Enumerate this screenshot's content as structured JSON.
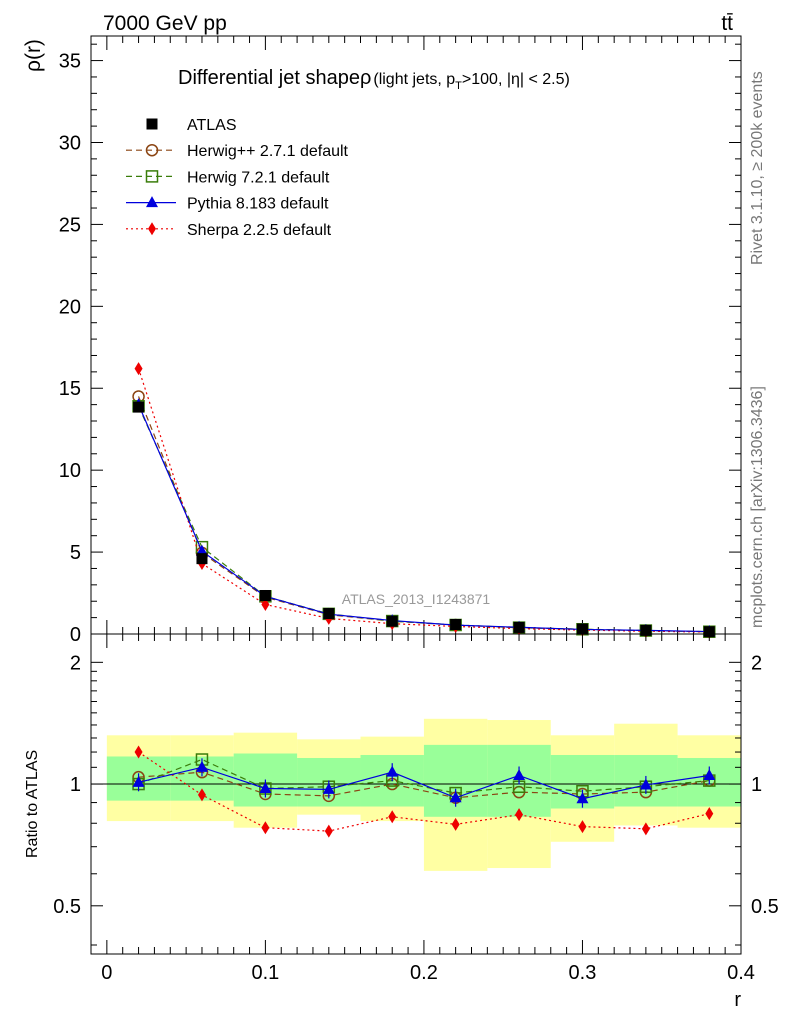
{
  "header": {
    "energy_label": "7000 GeV pp",
    "process_label": "tt̄",
    "rivet_label": "Rivet 3.1.10, ≥ 200k events",
    "mcplots_label": "mcplots.cern.ch [arXiv:1306.3436]",
    "analysis_label": "ATLAS_2013_I1243871"
  },
  "chart_data": [
    {
      "name": "main",
      "type": "line",
      "title": "Differential jet shape",
      "title_symbol": "ρ",
      "subtitle": "(light jets, p",
      "subtitle_sub": "T",
      "subtitle_rest": ">100, |η| < 2.5)",
      "ylabel": "ρ(r)",
      "xlabel": "r",
      "xlim": [
        -0.01,
        0.4
      ],
      "ylim": [
        0,
        36.5
      ],
      "yticks": [
        0,
        5,
        10,
        15,
        20,
        25,
        30,
        35
      ],
      "x": [
        0.02,
        0.06,
        0.1,
        0.14,
        0.18,
        0.22,
        0.26,
        0.3,
        0.34,
        0.38
      ],
      "series": [
        {
          "name": "ATLAS",
          "color": "#000000",
          "marker": "square-filled",
          "values": [
            13.85,
            4.6,
            2.35,
            1.25,
            0.78,
            0.58,
            0.4,
            0.3,
            0.22,
            0.14
          ]
        },
        {
          "name": "Herwig++ 2.7.1 default",
          "color": "#8b4513",
          "marker": "circle-open",
          "values": [
            14.5,
            4.95,
            2.25,
            1.18,
            0.78,
            0.55,
            0.38,
            0.29,
            0.21,
            0.14
          ]
        },
        {
          "name": "Herwig 7.2.1 default",
          "color": "#3a7d0a",
          "marker": "square-open",
          "values": [
            13.9,
            5.3,
            2.3,
            1.23,
            0.79,
            0.55,
            0.39,
            0.29,
            0.21,
            0.14
          ]
        },
        {
          "name": "Pythia 8.183 default",
          "color": "#0000dd",
          "marker": "triangle-filled",
          "values": [
            14.0,
            5.05,
            2.3,
            1.21,
            0.82,
            0.54,
            0.41,
            0.28,
            0.22,
            0.15
          ]
        },
        {
          "name": "Sherpa 2.2.5 default",
          "color": "#ee0000",
          "marker": "diamond-filled",
          "values": [
            16.2,
            4.3,
            1.8,
            0.95,
            0.63,
            0.46,
            0.33,
            0.24,
            0.17,
            0.12
          ]
        }
      ]
    },
    {
      "name": "ratio",
      "type": "line",
      "ylabel": "Ratio to ATLAS",
      "xlabel": "r",
      "xlim": [
        -0.01,
        0.4
      ],
      "ylim": [
        0.38,
        2.35
      ],
      "scale": "log",
      "yticks": [
        0.5,
        1,
        2
      ],
      "ytick_labels": [
        "0.5",
        "1",
        "2"
      ],
      "xticks": [
        0,
        0.1,
        0.2,
        0.3,
        0.4
      ],
      "xtick_labels": [
        "0",
        "0.1",
        "0.2",
        "0.3",
        "0.4"
      ],
      "bins": [
        0.0,
        0.04,
        0.08,
        0.12,
        0.16,
        0.2,
        0.24,
        0.28,
        0.32,
        0.36,
        0.4
      ],
      "band_yellow": [
        [
          0.81,
          1.32
        ],
        [
          0.81,
          1.32
        ],
        [
          0.78,
          1.34
        ],
        [
          0.84,
          1.29
        ],
        [
          0.81,
          1.31
        ],
        [
          0.61,
          1.45
        ],
        [
          0.62,
          1.44
        ],
        [
          0.72,
          1.32
        ],
        [
          0.79,
          1.41
        ],
        [
          0.78,
          1.32
        ]
      ],
      "band_green": [
        [
          0.91,
          1.17
        ],
        [
          0.91,
          1.17
        ],
        [
          0.88,
          1.19
        ],
        [
          0.88,
          1.16
        ],
        [
          0.88,
          1.18
        ],
        [
          0.83,
          1.25
        ],
        [
          0.83,
          1.25
        ],
        [
          0.87,
          1.18
        ],
        [
          0.88,
          1.18
        ],
        [
          0.88,
          1.16
        ]
      ],
      "x": [
        0.02,
        0.06,
        0.1,
        0.14,
        0.18,
        0.22,
        0.26,
        0.3,
        0.34,
        0.38
      ],
      "series": [
        {
          "name": "Herwig++ 2.7.1 default",
          "color": "#8b4513",
          "marker": "circle-open",
          "values": [
            1.04,
            1.07,
            0.945,
            0.935,
            1.0,
            0.925,
            0.955,
            0.945,
            0.955,
            1.02
          ]
        },
        {
          "name": "Herwig 7.2.1 default",
          "color": "#3a7d0a",
          "marker": "square-open",
          "values": [
            1.0,
            1.15,
            0.975,
            0.985,
            1.02,
            0.95,
            0.985,
            0.96,
            0.985,
            1.02
          ]
        },
        {
          "name": "Pythia 8.183 default",
          "color": "#0000dd",
          "marker": "triangle-filled",
          "values": [
            1.01,
            1.1,
            0.975,
            0.97,
            1.07,
            0.925,
            1.05,
            0.92,
            0.995,
            1.05
          ]
        },
        {
          "name": "Sherpa 2.2.5 default",
          "color": "#ee0000",
          "marker": "diamond-filled",
          "values": [
            1.2,
            0.94,
            0.78,
            0.765,
            0.83,
            0.795,
            0.84,
            0.785,
            0.775,
            0.845
          ]
        }
      ]
    }
  ]
}
